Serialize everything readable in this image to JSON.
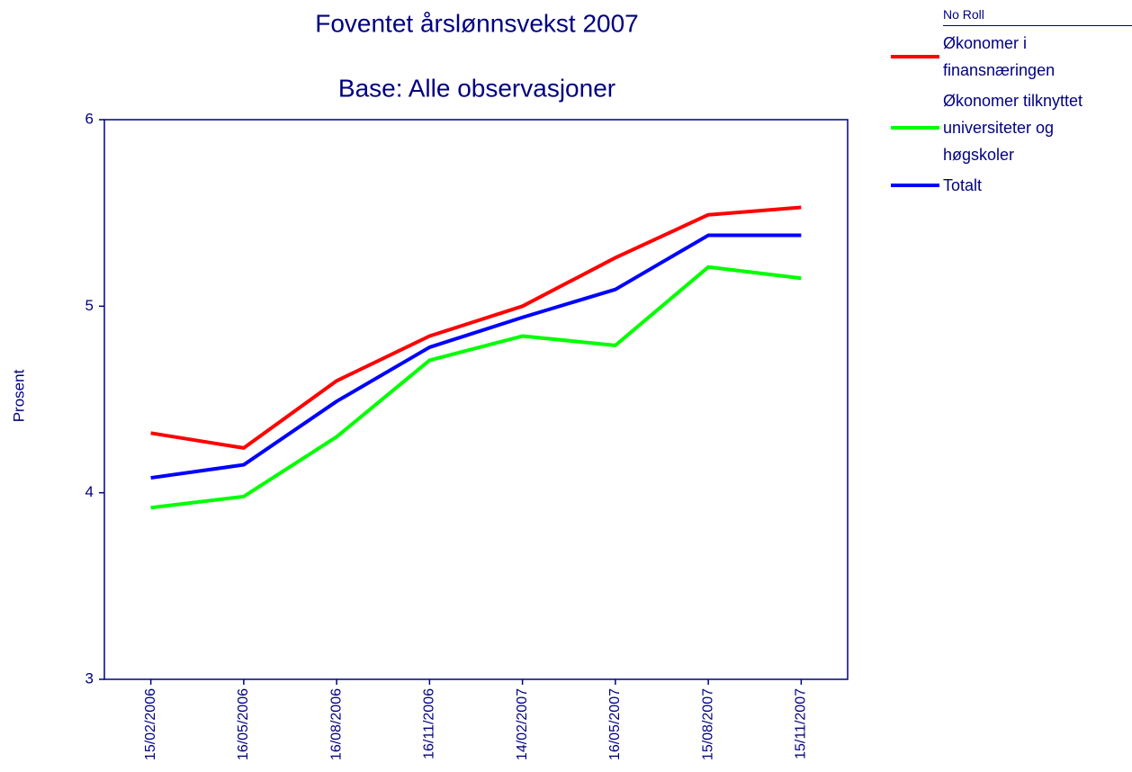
{
  "chart_data": {
    "type": "line",
    "title": "Foventet årslønnsvekst 2007",
    "subtitle": "Base: Alle observasjoner",
    "y_label": "Prosent",
    "legend_title": "No Roll",
    "categories": [
      "15/02/2006",
      "16/05/2006",
      "16/08/2006",
      "16/11/2006",
      "14/02/2007",
      "16/05/2007",
      "15/08/2007",
      "15/11/2007"
    ],
    "series": [
      {
        "name": "Økonomer i finansnæringen",
        "color": "#ff0000",
        "values": [
          4.32,
          4.24,
          4.6,
          4.84,
          5.0,
          5.26,
          5.49,
          5.53
        ]
      },
      {
        "name": "Økonomer tilknyttet universiteter og høgskoler",
        "color": "#00ff00",
        "values": [
          3.92,
          3.98,
          4.3,
          4.71,
          4.84,
          4.79,
          5.21,
          5.15
        ]
      },
      {
        "name": "Totalt",
        "color": "#0000ff",
        "values": [
          4.08,
          4.15,
          4.49,
          4.78,
          4.94,
          5.09,
          5.38,
          5.38
        ]
      }
    ],
    "ylim": [
      3,
      6
    ],
    "yticks": [
      3,
      4,
      5,
      6
    ]
  }
}
